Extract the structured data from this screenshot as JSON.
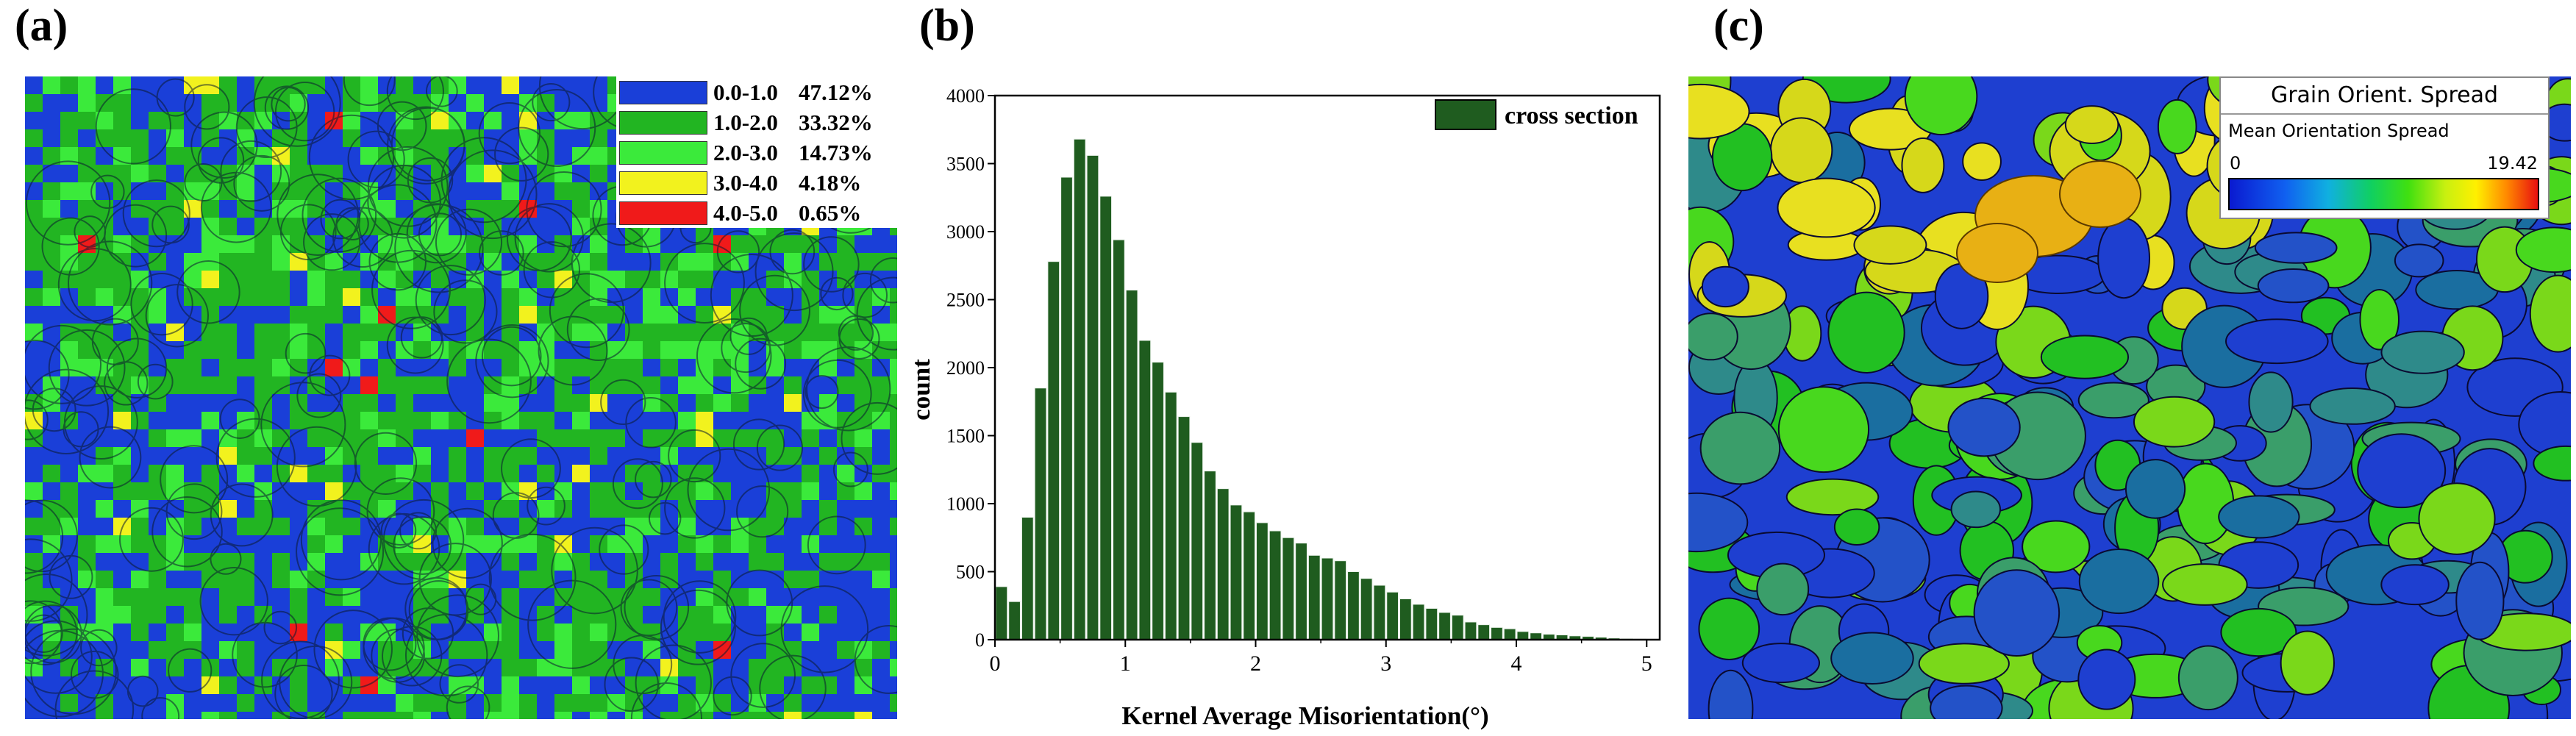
{
  "panel_labels": {
    "a": "(a)",
    "b": "(b)",
    "c": "(c)"
  },
  "kam_legend": {
    "items": [
      {
        "range": "0.0-1.0",
        "percent": "47.12%",
        "color": "#1a3fd8"
      },
      {
        "range": "1.0-2.0",
        "percent": "33.32%",
        "color": "#22b522"
      },
      {
        "range": "2.0-3.0",
        "percent": "14.73%",
        "color": "#3bea3b"
      },
      {
        "range": "3.0-4.0",
        "percent": "4.18%",
        "color": "#f2f21e"
      },
      {
        "range": "4.0-5.0",
        "percent": "0.65%",
        "color": "#f01a1a"
      }
    ]
  },
  "gos_legend": {
    "title": "Grain Orient. Spread",
    "subtitle": "Mean Orientation Spread",
    "min_label": "0",
    "max_label": "19.42"
  },
  "chart_data": {
    "type": "bar",
    "title": "",
    "xlabel": "Kernel Average Misorientation(°)",
    "ylabel": "count",
    "legend": "cross section",
    "bar_color": "#1f5c1f",
    "xlim": [
      0,
      5.1
    ],
    "ylim": [
      0,
      4000
    ],
    "x_ticks": [
      0,
      1,
      2,
      3,
      4,
      5
    ],
    "y_ticks": [
      0,
      500,
      1000,
      1500,
      2000,
      2500,
      3000,
      3500,
      4000
    ],
    "bin_width": 0.1,
    "x": [
      0.05,
      0.15,
      0.25,
      0.35,
      0.45,
      0.55,
      0.65,
      0.75,
      0.85,
      0.95,
      1.05,
      1.15,
      1.25,
      1.35,
      1.45,
      1.55,
      1.65,
      1.75,
      1.85,
      1.95,
      2.05,
      2.15,
      2.25,
      2.35,
      2.45,
      2.55,
      2.65,
      2.75,
      2.85,
      2.95,
      3.05,
      3.15,
      3.25,
      3.35,
      3.45,
      3.55,
      3.65,
      3.75,
      3.85,
      3.95,
      4.05,
      4.15,
      4.25,
      4.35,
      4.45,
      4.55,
      4.65,
      4.75,
      4.85,
      4.95
    ],
    "values": [
      390,
      280,
      900,
      1850,
      2780,
      3400,
      3680,
      3560,
      3260,
      2940,
      2570,
      2200,
      2040,
      1820,
      1640,
      1450,
      1240,
      1110,
      990,
      940,
      860,
      800,
      750,
      710,
      620,
      600,
      580,
      500,
      450,
      400,
      350,
      300,
      260,
      230,
      200,
      180,
      130,
      110,
      90,
      80,
      60,
      50,
      40,
      35,
      28,
      24,
      18,
      12,
      8,
      5
    ]
  }
}
